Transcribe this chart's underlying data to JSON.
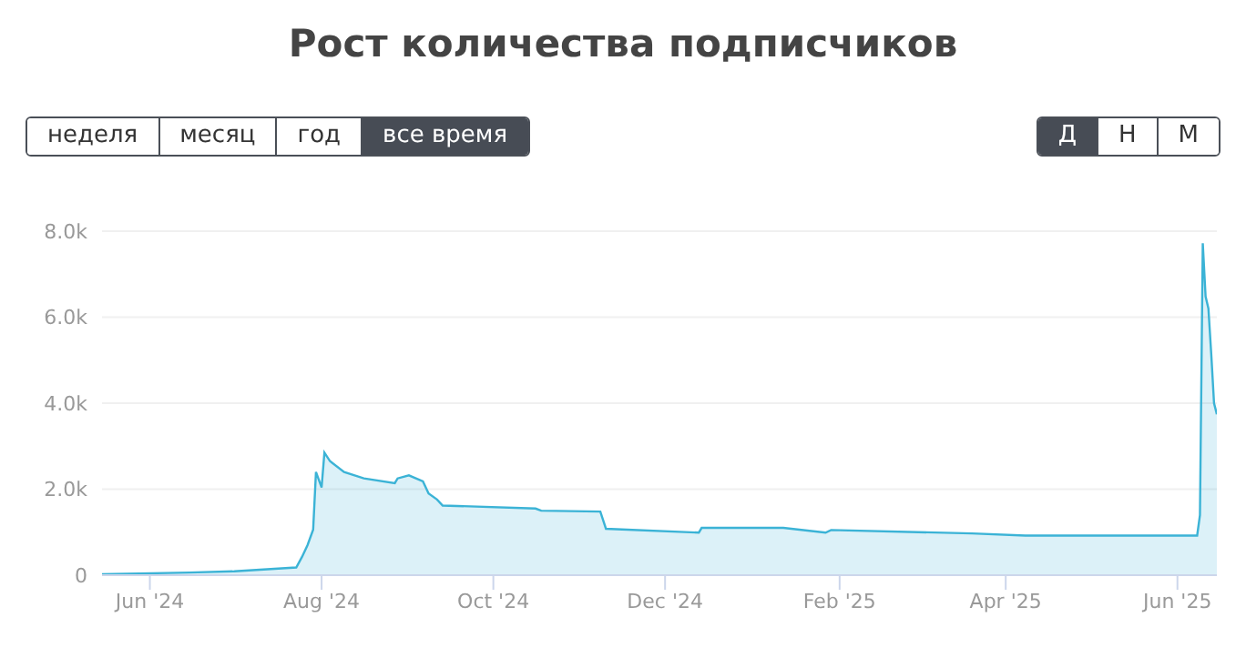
{
  "chart_data": {
    "type": "area",
    "title": "Рост количества подписчиков",
    "color": "#3bb3d6",
    "grid": "y",
    "annotations": [
      "неделя",
      "месяц",
      "год",
      "все время",
      "Д",
      "Н",
      "М"
    ],
    "x": [
      "2024-05-15",
      "2024-06-15",
      "2024-07-01",
      "2024-07-23",
      "2024-07-25",
      "2024-07-27",
      "2024-07-29",
      "2024-07-30",
      "2024-08-01",
      "2024-08-02",
      "2024-08-04",
      "2024-08-09",
      "2024-08-16",
      "2024-08-27",
      "2024-08-28",
      "2024-09-01",
      "2024-09-06",
      "2024-09-08",
      "2024-09-11",
      "2024-09-13",
      "2024-10-16",
      "2024-10-18",
      "2024-11-08",
      "2024-11-10",
      "2024-12-13",
      "2024-12-14",
      "2025-01-12",
      "2025-01-27",
      "2025-01-29",
      "2025-03-20",
      "2025-04-08",
      "2025-06-08",
      "2025-06-09",
      "2025-06-10",
      "2025-06-11",
      "2025-06-12",
      "2025-06-13",
      "2025-06-14",
      "2025-06-15"
    ],
    "values": [
      20,
      60,
      90,
      180,
      420,
      700,
      1060,
      2400,
      2040,
      2850,
      2650,
      2400,
      2250,
      2140,
      2250,
      2320,
      2180,
      1900,
      1760,
      1620,
      1550,
      1500,
      1480,
      1080,
      990,
      1100,
      1100,
      990,
      1050,
      970,
      920,
      920,
      1400,
      7720,
      6480,
      6200,
      5150,
      4000,
      3740
    ],
    "xlim": [
      "2024-05-15",
      "2025-06-15"
    ],
    "xticks": [
      {
        "value": "2024-06-01",
        "label": "Jun '24"
      },
      {
        "value": "2024-08-01",
        "label": "Aug '24"
      },
      {
        "value": "2024-10-01",
        "label": "Oct '24"
      },
      {
        "value": "2024-12-01",
        "label": "Dec '24"
      },
      {
        "value": "2025-02-01",
        "label": "Feb '25"
      },
      {
        "value": "2025-04-01",
        "label": "Apr '25"
      },
      {
        "value": "2025-06-01",
        "label": "Jun '25"
      }
    ],
    "ylim": [
      0,
      8000
    ],
    "yticks": [
      0,
      {
        "value": 2000,
        "label": "2.0k"
      },
      {
        "value": 4000,
        "label": "4.0k"
      },
      {
        "value": 6000,
        "label": "6.0k"
      },
      {
        "value": 8000,
        "label": "8.0k"
      }
    ]
  }
}
